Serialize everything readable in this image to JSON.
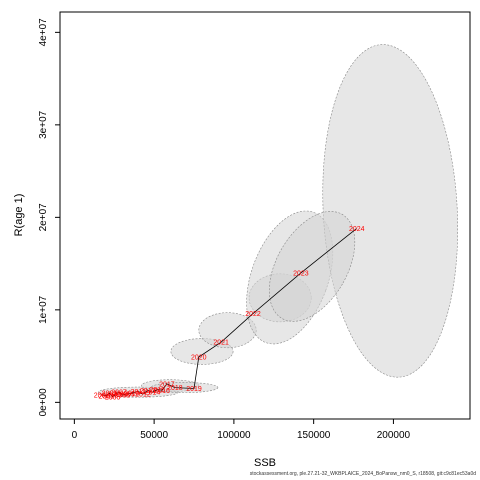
{
  "footer": "stockassessment.org, ple.27.21-32_WKBPLAICE_2024_BoPansw_nm0_S, r18508, git:c9c81ec53a0d",
  "chart_data": {
    "type": "scatter",
    "xlabel": "SSB",
    "ylabel": "R(age 1)",
    "xlim": [
      -9000,
      248000
    ],
    "ylim": [
      -1800000,
      42200000
    ],
    "xticks": [
      0,
      50000,
      100000,
      150000,
      200000
    ],
    "xtick_labels": [
      "0",
      "50000",
      "100000",
      "150000",
      "200000"
    ],
    "yticks": [
      0,
      10000000,
      20000000,
      30000000,
      40000000
    ],
    "ytick_labels": [
      "0e+00",
      "1e+07",
      "2e+07",
      "3e+07",
      "4e+07"
    ],
    "grid": false,
    "colors": {
      "point_labels": "#ff0000",
      "line": "#000000",
      "ellipse_fill": "#d3d3d3",
      "ellipse_stroke": "#888888"
    },
    "points": [
      {
        "label": "2002",
        "x": 17000,
        "y": 800000
      },
      {
        "label": "2003",
        "x": 20000,
        "y": 700000
      },
      {
        "label": "2004",
        "x": 22000,
        "y": 1000000
      },
      {
        "label": "2005",
        "x": 24000,
        "y": 600000
      },
      {
        "label": "2006",
        "x": 26000,
        "y": 900000
      },
      {
        "label": "2007",
        "x": 28000,
        "y": 1100000
      },
      {
        "label": "2008",
        "x": 30000,
        "y": 800000
      },
      {
        "label": "2009",
        "x": 33000,
        "y": 900000
      },
      {
        "label": "2010",
        "x": 36000,
        "y": 1000000
      },
      {
        "label": "2011",
        "x": 40000,
        "y": 1200000
      },
      {
        "label": "2012",
        "x": 43000,
        "y": 900000
      },
      {
        "label": "2013",
        "x": 46000,
        "y": 1300000
      },
      {
        "label": "2014",
        "x": 49000,
        "y": 1100000
      },
      {
        "label": "2015",
        "x": 52000,
        "y": 1400000
      },
      {
        "label": "2016",
        "x": 55000,
        "y": 1300000
      },
      {
        "label": "2017",
        "x": 58000,
        "y": 2000000
      },
      {
        "label": "2018",
        "x": 63000,
        "y": 1600000
      },
      {
        "label": "2019",
        "x": 75000,
        "y": 1500000
      },
      {
        "label": "2020",
        "x": 78000,
        "y": 4900000
      },
      {
        "label": "2021",
        "x": 92000,
        "y": 6500000
      },
      {
        "label": "2022",
        "x": 112000,
        "y": 9600000
      },
      {
        "label": "2023",
        "x": 142000,
        "y": 14000000
      },
      {
        "label": "2024",
        "x": 177000,
        "y": 18800000
      }
    ],
    "ellipses": [
      {
        "cx": 40000,
        "cy": 1100000,
        "rx": 25000,
        "ry": 550000,
        "angle": 0
      },
      {
        "cx": 60000,
        "cy": 1800000,
        "rx": 18000,
        "ry": 650000,
        "angle": 0
      },
      {
        "cx": 69000,
        "cy": 1600000,
        "rx": 21000,
        "ry": 550000,
        "angle": 0
      },
      {
        "cx": 80000,
        "cy": 5500000,
        "rx": 19500,
        "ry": 1400000,
        "angle": 0
      },
      {
        "cx": 96000,
        "cy": 7800000,
        "rx": 18000,
        "ry": 1900000,
        "angle": 0
      },
      {
        "cx": 129000,
        "cy": 11300000,
        "rx": 19500,
        "ry": 2600000,
        "angle": 0
      },
      {
        "cx": 135000,
        "cy": 13500000,
        "rx": 24000,
        "ry": 7500000,
        "angle": 20
      },
      {
        "cx": 198000,
        "cy": 20700000,
        "rx": 42000,
        "ry": 18000000,
        "angle": -3
      },
      {
        "cx": 149000,
        "cy": 14700000,
        "rx": 22000,
        "ry": 6500000,
        "angle": 30
      }
    ]
  }
}
